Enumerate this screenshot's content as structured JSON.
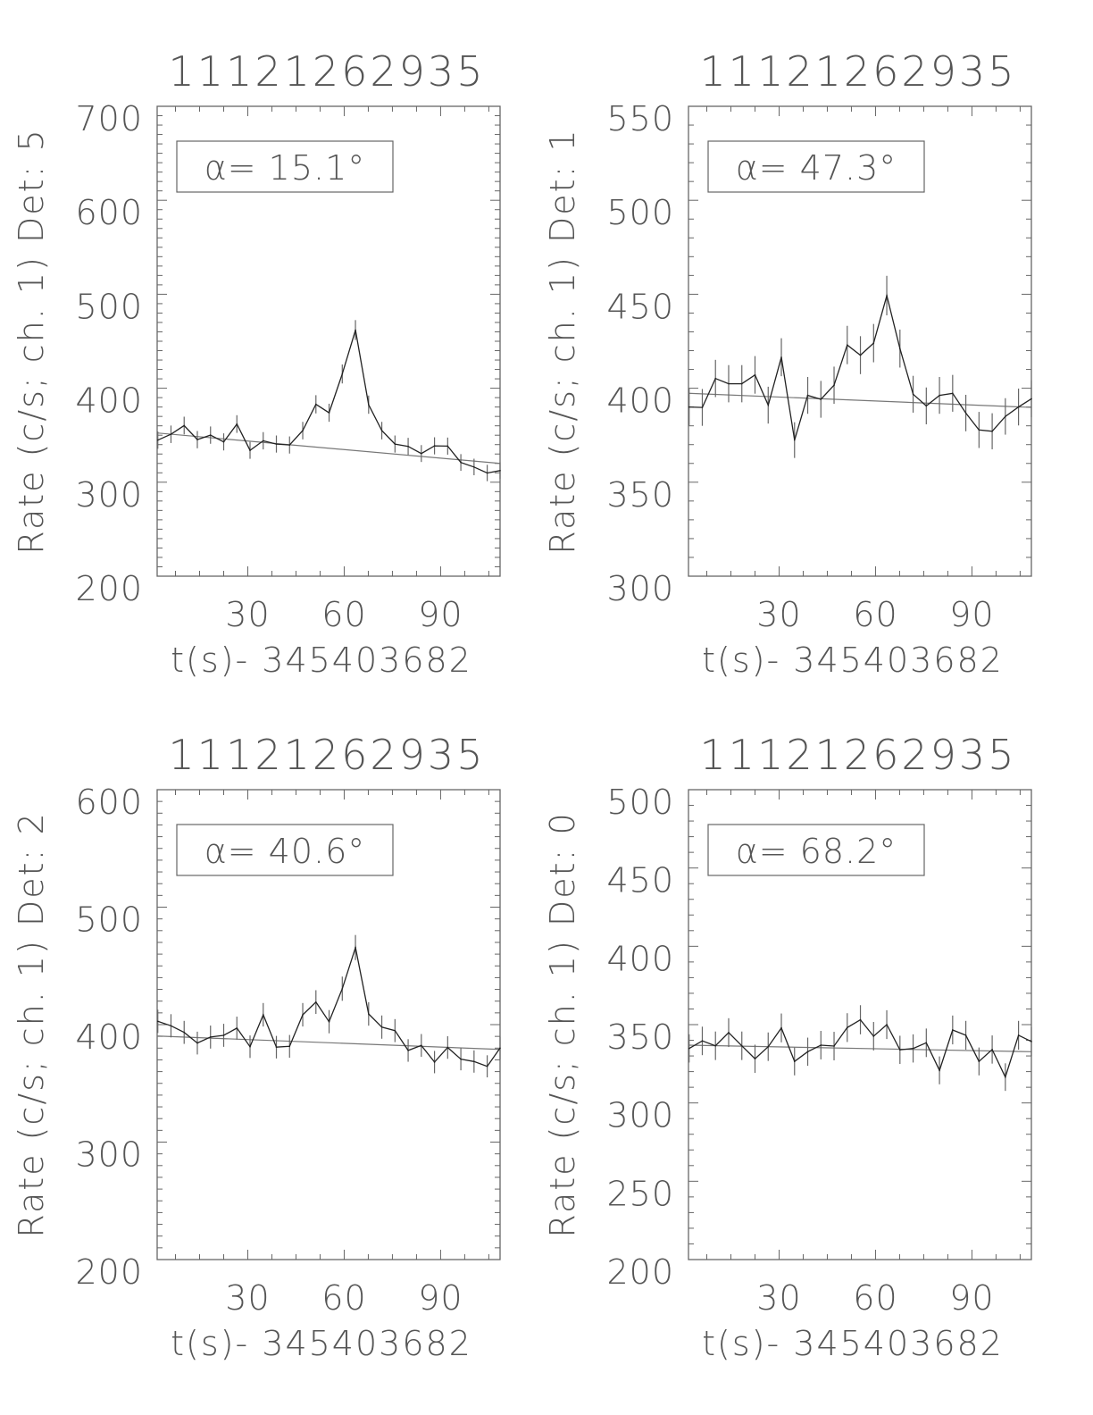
{
  "chart_data": [
    {
      "type": "line",
      "title": "11121262935",
      "xlabel": "t(s)- 345403682",
      "ylabel": "Rate (c/s; ch. 1) Det: 5",
      "annotation": "α=  15.1°",
      "xlim": [
        1.8,
        108.5
      ],
      "ylim": [
        200,
        700
      ],
      "xticks": [
        30,
        60,
        90
      ],
      "yticks": [
        200,
        300,
        400,
        500,
        600,
        700
      ],
      "yminor": 10,
      "x": [
        2.0,
        6.1,
        10.2,
        14.3,
        18.4,
        22.5,
        26.6,
        30.7,
        34.8,
        38.9,
        43.0,
        47.1,
        51.2,
        55.3,
        59.4,
        63.5,
        67.6,
        71.7,
        75.8,
        79.9,
        84.0,
        88.1,
        92.2,
        96.3,
        100.4,
        104.5,
        108.5
      ],
      "y": [
        344.8,
        351.0,
        360.3,
        345.3,
        350.1,
        342.9,
        361.9,
        333.9,
        344.1,
        340.6,
        339.6,
        354.9,
        382.9,
        373.9,
        415.2,
        461.9,
        382.5,
        354.9,
        340.6,
        338.1,
        330.5,
        338.7,
        338.4,
        321.0,
        316.2,
        309.8,
        312.4
      ],
      "yerr": [
        9.2,
        9.3,
        9.4,
        9.2,
        9.2,
        9.1,
        9.4,
        9.0,
        9.2,
        9.1,
        9.1,
        9.3,
        9.7,
        9.6,
        10.1,
        10.6,
        9.7,
        9.3,
        9.1,
        9.1,
        9.0,
        9.1,
        9.1,
        8.9,
        8.8,
        8.7,
        8.7
      ],
      "fit": {
        "x": [
          1.8,
          108.5
        ],
        "y": [
          352.4,
          320.0
        ]
      }
    },
    {
      "type": "line",
      "title": "11121262935",
      "xlabel": "t(s)- 345403682",
      "ylabel": "Rate (c/s; ch. 1) Det: 1",
      "annotation": "α=  47.3°",
      "xlim": [
        1.8,
        108.5
      ],
      "ylim": [
        300,
        550
      ],
      "xticks": [
        30,
        60,
        90
      ],
      "yticks": [
        300,
        350,
        400,
        450,
        500,
        550
      ],
      "yminor": 10,
      "x": [
        2.0,
        6.1,
        10.2,
        14.3,
        18.4,
        22.5,
        26.6,
        30.7,
        34.8,
        38.9,
        43.0,
        47.1,
        51.2,
        55.3,
        59.4,
        63.5,
        67.6,
        71.7,
        75.8,
        79.9,
        84.0,
        88.1,
        92.2,
        96.3,
        100.4,
        104.5,
        108.5
      ],
      "y": [
        390.0,
        389.8,
        405.2,
        402.4,
        402.4,
        407.1,
        391.0,
        416.5,
        372.4,
        396.2,
        394.1,
        401.6,
        423.0,
        417.6,
        424.0,
        449.3,
        421.1,
        396.8,
        390.6,
        396.2,
        397.3,
        386.8,
        377.8,
        377.1,
        385.0,
        390.0,
        394.4
      ],
      "yerr": [
        9.8,
        9.8,
        9.9,
        9.9,
        9.9,
        10.0,
        9.8,
        10.1,
        9.5,
        9.8,
        9.8,
        9.9,
        10.2,
        10.1,
        10.2,
        10.5,
        10.1,
        9.8,
        9.8,
        9.8,
        9.8,
        9.7,
        9.6,
        9.6,
        9.7,
        9.8,
        9.8
      ],
      "fit": {
        "x": [
          1.8,
          108.5
        ],
        "y": [
          397.3,
          389.8
        ]
      }
    },
    {
      "type": "line",
      "title": "11121262935",
      "xlabel": "t(s)- 345403682",
      "ylabel": "Rate (c/s; ch. 1) Det: 2",
      "annotation": "α=  40.6°",
      "xlim": [
        1.8,
        108.5
      ],
      "ylim": [
        200,
        600
      ],
      "xticks": [
        30,
        60,
        90
      ],
      "yticks": [
        200,
        300,
        400,
        500,
        600
      ],
      "yminor": 10,
      "x": [
        2.0,
        6.1,
        10.2,
        14.3,
        18.4,
        22.5,
        26.6,
        30.7,
        34.8,
        38.9,
        43.0,
        47.1,
        51.2,
        55.3,
        59.4,
        63.5,
        67.6,
        71.7,
        75.8,
        79.9,
        84.0,
        88.1,
        92.2,
        96.3,
        100.4,
        104.5,
        108.5
      ],
      "y": [
        402.8,
        399.0,
        393.4,
        384.3,
        389.4,
        390.9,
        397.0,
        381.2,
        408.4,
        380.8,
        381.5,
        408.4,
        419.2,
        402.5,
        430.6,
        465.6,
        409.1,
        397.9,
        394.9,
        378.0,
        382.3,
        368.1,
        380.5,
        370.6,
        368.6,
        364.5,
        380.0
      ],
      "yerr": [
        9.9,
        9.9,
        9.8,
        9.7,
        9.8,
        9.8,
        9.8,
        9.6,
        10.0,
        9.6,
        9.7,
        10.0,
        10.1,
        9.9,
        10.3,
        10.7,
        10.0,
        9.9,
        9.8,
        9.6,
        9.7,
        9.5,
        9.6,
        9.5,
        9.5,
        9.4,
        9.6
      ],
      "fit": {
        "x": [
          1.8,
          108.5
        ],
        "y": [
          390.3,
          378.9
        ]
      }
    },
    {
      "type": "line",
      "title": "11121262935",
      "xlabel": "t(s)- 345403682",
      "ylabel": "Rate (c/s; ch. 1) Det: 0",
      "annotation": "α=  68.2°",
      "xlim": [
        1.8,
        108.5
      ],
      "ylim": [
        200,
        500
      ],
      "xticks": [
        30,
        60,
        90
      ],
      "yticks": [
        200,
        250,
        300,
        350,
        400,
        450,
        500
      ],
      "yminor": 10,
      "x": [
        2.0,
        6.1,
        10.2,
        14.3,
        18.4,
        22.5,
        26.6,
        30.7,
        34.8,
        38.9,
        43.0,
        47.1,
        51.2,
        55.3,
        59.4,
        63.5,
        67.6,
        71.7,
        75.8,
        79.9,
        84.0,
        88.1,
        92.2,
        96.3,
        100.4,
        104.5,
        108.5
      ],
      "y": [
        334.8,
        339.6,
        336.5,
        344.9,
        336.5,
        328.2,
        335.9,
        347.9,
        326.5,
        332.7,
        336.9,
        336.3,
        348.1,
        353.1,
        342.6,
        350.0,
        333.9,
        334.8,
        338.4,
        320.8,
        346.6,
        343.2,
        326.5,
        334.1,
        316.5,
        343.2,
        339.2
      ],
      "yerr": [
        9.0,
        9.1,
        9.1,
        9.2,
        9.1,
        9.0,
        9.1,
        9.2,
        8.9,
        9.0,
        9.1,
        9.1,
        9.2,
        9.3,
        9.1,
        9.2,
        9.0,
        9.0,
        9.1,
        8.9,
        9.2,
        9.2,
        8.9,
        9.0,
        8.8,
        9.2,
        9.1
      ],
      "fit": {
        "x": [
          1.8,
          108.5
        ],
        "y": [
          336.9,
          332.7
        ]
      }
    }
  ]
}
